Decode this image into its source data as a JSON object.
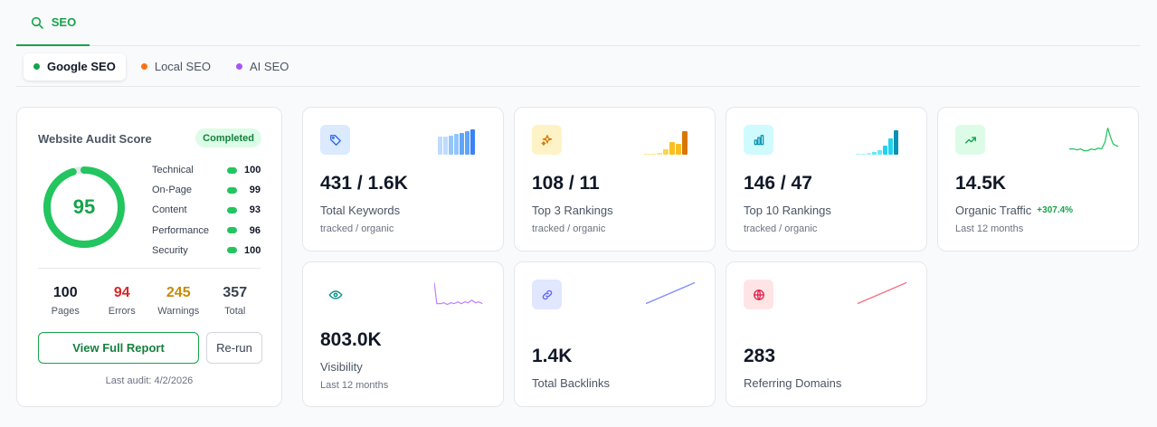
{
  "main_tab": {
    "label": "SEO"
  },
  "subtabs": [
    {
      "label": "Google SEO",
      "color": "#16a34a",
      "active": true
    },
    {
      "label": "Local SEO",
      "color": "#f97316",
      "active": false
    },
    {
      "label": "AI SEO",
      "color": "#a855f7",
      "active": false
    }
  ],
  "audit": {
    "title": "Website Audit Score",
    "status": "Completed",
    "score": "95",
    "score_fraction": 0.95,
    "metrics": [
      {
        "label": "Technical",
        "value": "100"
      },
      {
        "label": "On-Page",
        "value": "99"
      },
      {
        "label": "Content",
        "value": "93"
      },
      {
        "label": "Performance",
        "value": "96"
      },
      {
        "label": "Security",
        "value": "100"
      }
    ],
    "stats": [
      {
        "value": "100",
        "label": "Pages",
        "color": "#111827"
      },
      {
        "value": "94",
        "label": "Errors",
        "color": "#dc2626"
      },
      {
        "value": "245",
        "label": "Warnings",
        "color": "#ca8a04"
      },
      {
        "value": "357",
        "label": "Total",
        "color": "#374151"
      }
    ],
    "report_button": "View Full Report",
    "rerun_button": "Re-run",
    "last_audit": "Last audit: 4/2/2026"
  },
  "cards": {
    "keywords": {
      "value": "431 / 1.6K",
      "label": "Total Keywords",
      "sub": "tracked / organic",
      "icon": "tag-icon"
    },
    "top3": {
      "value": "108 / 11",
      "label": "Top 3 Rankings",
      "sub": "tracked / organic",
      "icon": "sparkle-icon"
    },
    "top10": {
      "value": "146 / 47",
      "label": "Top 10 Rankings",
      "sub": "tracked / organic",
      "icon": "bar-chart-icon"
    },
    "traffic": {
      "value": "14.5K",
      "label": "Organic Traffic",
      "delta": "+307.4%",
      "sub": "Last 12 months",
      "icon": "trending-up-icon"
    },
    "visibility": {
      "value": "803.0K",
      "label": "Visibility",
      "sub": "Last 12 months",
      "icon": "eye-icon"
    },
    "backlinks": {
      "value": "1.4K",
      "label": "Total Backlinks",
      "icon": "link-icon"
    },
    "domains": {
      "value": "283",
      "label": "Referring Domains",
      "icon": "globe-icon"
    }
  }
}
